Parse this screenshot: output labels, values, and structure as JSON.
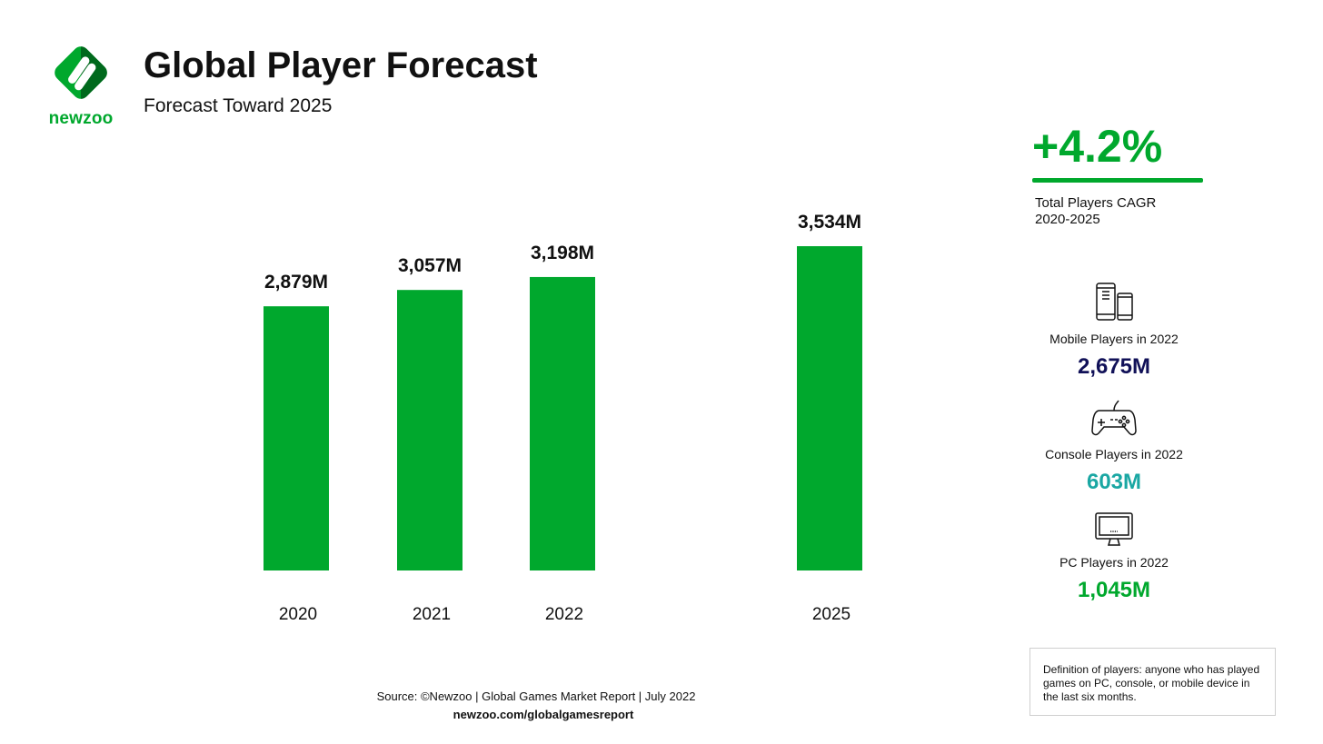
{
  "brand": {
    "name": "newzoo",
    "colors": {
      "primary": "#00a82d",
      "dark_green": "#00691c",
      "navy": "#111158",
      "teal": "#1aa7a3"
    }
  },
  "header": {
    "title": "Global Player Forecast",
    "subtitle": "Forecast Toward 2025"
  },
  "chart_data": {
    "type": "bar",
    "title": "Global Player Forecast",
    "subtitle": "Forecast Toward 2025",
    "categories": [
      "2020",
      "2021",
      "2022",
      "2025"
    ],
    "values": [
      2879,
      3057,
      3198,
      3534
    ],
    "value_labels": [
      "2,879M",
      "3,057M",
      "3,198M",
      "3,534M"
    ],
    "unit": "M",
    "bar_color": "#00a82d",
    "gap_before_last_category": true,
    "xlabel": "",
    "ylabel": "",
    "ylim": [
      0,
      3534
    ],
    "grid": false,
    "y_axis_visible": false
  },
  "kpi": {
    "value": "+4.2%",
    "label_line1": "Total Players CAGR",
    "label_line2": "2020-2025"
  },
  "stats": [
    {
      "icon": "mobile-devices-icon",
      "label": "Mobile Players in 2022",
      "value": "2,675M",
      "color": "#111158"
    },
    {
      "icon": "gamepad-icon",
      "label": "Console Players in 2022",
      "value": "603M",
      "color": "#1aa7a3"
    },
    {
      "icon": "pc-monitor-icon",
      "label": "PC Players in 2022",
      "value": "1,045M",
      "color": "#00a82d"
    }
  ],
  "definition": "Definition of players: anyone who has played games on PC, console, or mobile device in the last six months.",
  "footer": {
    "source": "Source: ©Newzoo | Global Games Market Report | July 2022",
    "url": "newzoo.com/globalgamesreport"
  }
}
